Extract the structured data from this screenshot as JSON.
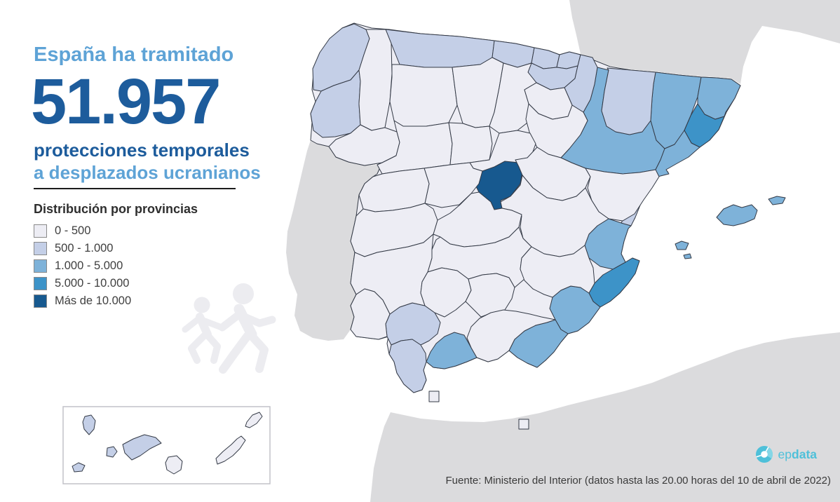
{
  "header": {
    "intro": "España ha tramitado",
    "big_number": "51.957",
    "line2": "protecciones temporales",
    "line3": "a desplazados ucranianos"
  },
  "legend": {
    "title": "Distribución por provincias",
    "items": [
      {
        "label": "0 - 500",
        "color": "#EDEDF4"
      },
      {
        "label": "500 - 1.000",
        "color": "#C4CFE7"
      },
      {
        "label": "1.000 - 5.000",
        "color": "#7EB2D9"
      },
      {
        "label": "5.000 - 10.000",
        "color": "#3D93C8"
      },
      {
        "label": "Más de 10.000",
        "color": "#17598F"
      }
    ]
  },
  "source": {
    "text": "Fuente: Ministerio del Interior (datos hasta las 20.00 horas del 10 de abril de 2022)"
  },
  "logo": {
    "text_light": "ep",
    "text_bold": "data",
    "color": "#4ec0d9"
  },
  "icons": {
    "watermark": "running-refugees-icon",
    "logo_icon": "donut-chart-icon"
  },
  "chart_data": {
    "type": "choropleth",
    "title": "España ha tramitado 51.957 protecciones temporales a desplazados ucranianos",
    "total": 51957,
    "unit": "protecciones temporales tramitadas por provincia",
    "buckets": [
      "0 - 500",
      "500 - 1.000",
      "1.000 - 5.000",
      "5.000 - 10.000",
      "Más de 10.000"
    ],
    "bucket_colors": [
      "#EDEDF4",
      "#C4CFE7",
      "#7EB2D9",
      "#3D93C8",
      "#17598F"
    ],
    "provinces": [
      {
        "name": "Madrid",
        "bucket": 5,
        "shapes": [
          "madrid"
        ]
      },
      {
        "name": "Barcelona",
        "bucket": 4,
        "shapes": [
          "barcelona"
        ]
      },
      {
        "name": "Alicante",
        "bucket": 4,
        "shapes": [
          "alicante"
        ]
      },
      {
        "name": "Zaragoza",
        "bucket": 3,
        "shapes": [
          "zaragoza"
        ]
      },
      {
        "name": "Lleida",
        "bucket": 3,
        "shapes": [
          "lleida"
        ]
      },
      {
        "name": "Girona",
        "bucket": 3,
        "shapes": [
          "girona"
        ]
      },
      {
        "name": "Tarragona",
        "bucket": 3,
        "shapes": [
          "tarragona"
        ]
      },
      {
        "name": "Valencia",
        "bucket": 3,
        "shapes": [
          "valencia",
          "valencia-ademuz"
        ]
      },
      {
        "name": "Murcia",
        "bucket": 3,
        "shapes": [
          "murcia"
        ]
      },
      {
        "name": "Almería",
        "bucket": 3,
        "shapes": [
          "almeria"
        ]
      },
      {
        "name": "Málaga",
        "bucket": 3,
        "shapes": [
          "malaga"
        ]
      },
      {
        "name": "Illes Balears",
        "bucket": 3,
        "shapes": [
          "mallorca",
          "menorca",
          "ibiza",
          "formentera"
        ]
      },
      {
        "name": "A Coruña",
        "bucket": 2,
        "shapes": [
          "a-coruna"
        ]
      },
      {
        "name": "Pontevedra",
        "bucket": 2,
        "shapes": [
          "pontevedra"
        ]
      },
      {
        "name": "Asturias",
        "bucket": 2,
        "shapes": [
          "asturias"
        ]
      },
      {
        "name": "Cantabria",
        "bucket": 2,
        "shapes": [
          "cantabria"
        ]
      },
      {
        "name": "Bizkaia",
        "bucket": 2,
        "shapes": [
          "bizkaia"
        ]
      },
      {
        "name": "Gipuzkoa",
        "bucket": 2,
        "shapes": [
          "gipuzkoa"
        ]
      },
      {
        "name": "Álava",
        "bucket": 2,
        "shapes": [
          "alava"
        ]
      },
      {
        "name": "Navarra",
        "bucket": 2,
        "shapes": [
          "navarra"
        ]
      },
      {
        "name": "Huesca",
        "bucket": 2,
        "shapes": [
          "huesca"
        ]
      },
      {
        "name": "Castellón",
        "bucket": 2,
        "shapes": [
          "castellon"
        ]
      },
      {
        "name": "Sevilla",
        "bucket": 2,
        "shapes": [
          "sevilla"
        ]
      },
      {
        "name": "Cádiz",
        "bucket": 2,
        "shapes": [
          "cadiz"
        ]
      },
      {
        "name": "Santa Cruz de Tenerife",
        "bucket": 2,
        "shapes": [
          "la-palma",
          "el-hierro",
          "la-gomera",
          "tenerife"
        ]
      },
      {
        "name": "Lugo",
        "bucket": 1,
        "shapes": [
          "lugo"
        ]
      },
      {
        "name": "Ourense",
        "bucket": 1,
        "shapes": [
          "ourense"
        ]
      },
      {
        "name": "León",
        "bucket": 1,
        "shapes": [
          "leon"
        ]
      },
      {
        "name": "Palencia",
        "bucket": 1,
        "shapes": [
          "palencia"
        ]
      },
      {
        "name": "Burgos",
        "bucket": 1,
        "shapes": [
          "burgos"
        ]
      },
      {
        "name": "Zamora",
        "bucket": 1,
        "shapes": [
          "zamora"
        ]
      },
      {
        "name": "Valladolid",
        "bucket": 1,
        "shapes": [
          "valladolid"
        ]
      },
      {
        "name": "Soria",
        "bucket": 1,
        "shapes": [
          "soria"
        ]
      },
      {
        "name": "Segovia",
        "bucket": 1,
        "shapes": [
          "segovia"
        ]
      },
      {
        "name": "Ávila",
        "bucket": 1,
        "shapes": [
          "avila"
        ]
      },
      {
        "name": "Salamanca",
        "bucket": 1,
        "shapes": [
          "salamanca"
        ]
      },
      {
        "name": "La Rioja",
        "bucket": 1,
        "shapes": [
          "rioja"
        ]
      },
      {
        "name": "Guadalajara",
        "bucket": 1,
        "shapes": [
          "guadalajara"
        ]
      },
      {
        "name": "Teruel",
        "bucket": 1,
        "shapes": [
          "teruel"
        ]
      },
      {
        "name": "Cuenca",
        "bucket": 1,
        "shapes": [
          "cuenca"
        ]
      },
      {
        "name": "Toledo",
        "bucket": 1,
        "shapes": [
          "toledo"
        ]
      },
      {
        "name": "Ciudad Real",
        "bucket": 1,
        "shapes": [
          "ciudad-real"
        ]
      },
      {
        "name": "Albacete",
        "bucket": 1,
        "shapes": [
          "albacete"
        ]
      },
      {
        "name": "Cáceres",
        "bucket": 1,
        "shapes": [
          "caceres"
        ]
      },
      {
        "name": "Badajoz",
        "bucket": 1,
        "shapes": [
          "badajoz"
        ]
      },
      {
        "name": "Huelva",
        "bucket": 1,
        "shapes": [
          "huelva"
        ]
      },
      {
        "name": "Córdoba",
        "bucket": 1,
        "shapes": [
          "cordoba"
        ]
      },
      {
        "name": "Jaén",
        "bucket": 1,
        "shapes": [
          "jaen"
        ]
      },
      {
        "name": "Granada",
        "bucket": 1,
        "shapes": [
          "granada"
        ]
      },
      {
        "name": "Las Palmas",
        "bucket": 1,
        "shapes": [
          "gran-canaria",
          "fuerteventura",
          "lanzarote"
        ]
      },
      {
        "name": "Ceuta",
        "bucket": 1,
        "shapes": [
          "ceuta"
        ]
      },
      {
        "name": "Melilla",
        "bucket": 1,
        "shapes": [
          "melilla"
        ]
      }
    ]
  }
}
